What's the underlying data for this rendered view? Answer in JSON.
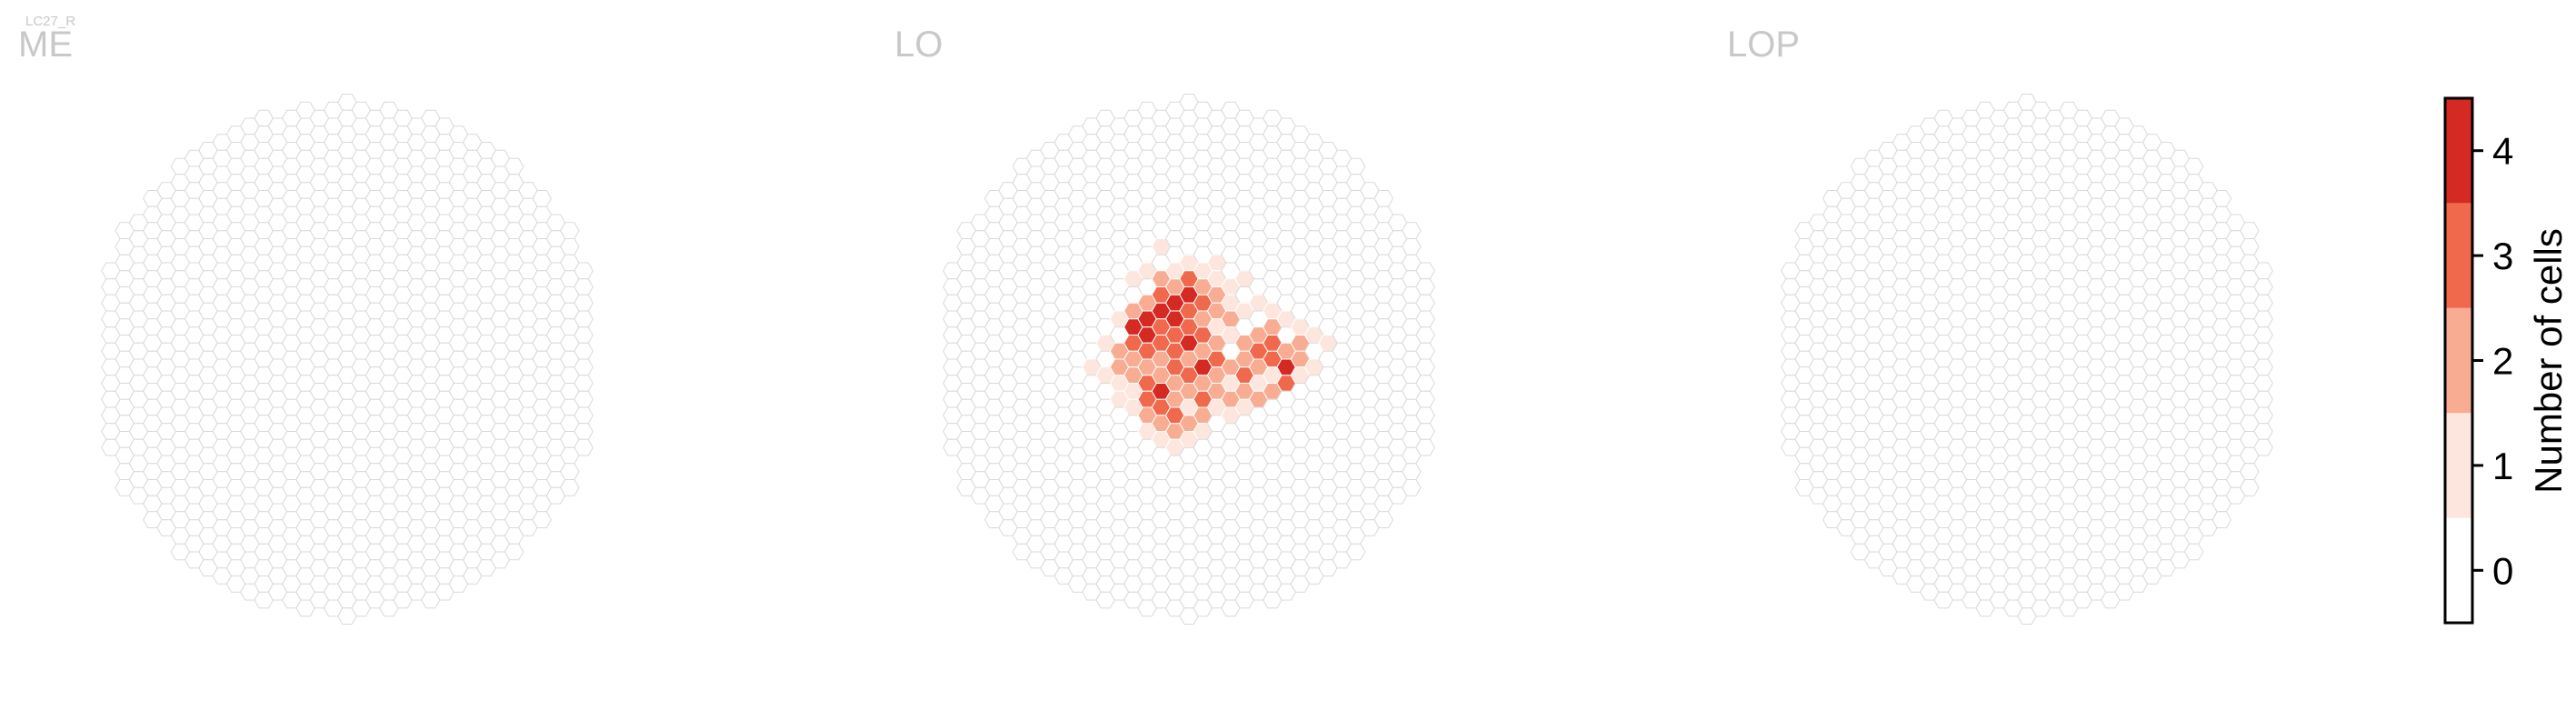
{
  "figure": {
    "suptitle": "LC27_R"
  },
  "chart_data": {
    "type": "heatmap",
    "description_free": true,
    "panels": [
      {
        "label": "ME",
        "cells_with_counts": []
      },
      {
        "label": "LO",
        "cells_with_counts": [
          {
            "q": -7,
            "r": 0,
            "value": 1
          },
          {
            "q": -6,
            "r": -1,
            "value": 1
          },
          {
            "q": -6,
            "r": 1,
            "value": 1
          },
          {
            "q": -5,
            "r": -3,
            "value": 1
          },
          {
            "q": -5,
            "r": -1,
            "value": 2
          },
          {
            "q": -5,
            "r": 0,
            "value": 2
          },
          {
            "q": -5,
            "r": 1,
            "value": 1
          },
          {
            "q": -5,
            "r": 2,
            "value": 1
          },
          {
            "q": -4,
            "r": -5,
            "value": 1
          },
          {
            "q": -4,
            "r": -3,
            "value": 2
          },
          {
            "q": -4,
            "r": -2,
            "value": 4
          },
          {
            "q": -4,
            "r": -1,
            "value": 3
          },
          {
            "q": -4,
            "r": 0,
            "value": 2
          },
          {
            "q": -4,
            "r": 1,
            "value": 2
          },
          {
            "q": -4,
            "r": 2,
            "value": 1
          },
          {
            "q": -4,
            "r": 3,
            "value": 1
          },
          {
            "q": -3,
            "r": -6,
            "value": 1
          },
          {
            "q": -3,
            "r": -4,
            "value": 2
          },
          {
            "q": -3,
            "r": -3,
            "value": 4
          },
          {
            "q": -3,
            "r": -2,
            "value": 4
          },
          {
            "q": -3,
            "r": -1,
            "value": 3
          },
          {
            "q": -3,
            "r": 0,
            "value": 2
          },
          {
            "q": -3,
            "r": 1,
            "value": 3
          },
          {
            "q": -3,
            "r": 2,
            "value": 3
          },
          {
            "q": -3,
            "r": 3,
            "value": 2
          },
          {
            "q": -3,
            "r": 4,
            "value": 1
          },
          {
            "q": -2,
            "r": -7,
            "value": 1
          },
          {
            "q": -2,
            "r": -5,
            "value": 2
          },
          {
            "q": -2,
            "r": -4,
            "value": 3
          },
          {
            "q": -2,
            "r": -3,
            "value": 4
          },
          {
            "q": -2,
            "r": -2,
            "value": 3
          },
          {
            "q": -2,
            "r": -1,
            "value": 3
          },
          {
            "q": -2,
            "r": 0,
            "value": 2
          },
          {
            "q": -2,
            "r": 1,
            "value": 2
          },
          {
            "q": -2,
            "r": 2,
            "value": 4
          },
          {
            "q": -2,
            "r": 3,
            "value": 3
          },
          {
            "q": -2,
            "r": 4,
            "value": 2
          },
          {
            "q": -2,
            "r": 5,
            "value": 1
          },
          {
            "q": -1,
            "r": -6,
            "value": 1
          },
          {
            "q": -1,
            "r": -5,
            "value": 2
          },
          {
            "q": -1,
            "r": -4,
            "value": 4
          },
          {
            "q": -1,
            "r": -3,
            "value": 4
          },
          {
            "q": -1,
            "r": -2,
            "value": 3
          },
          {
            "q": -1,
            "r": -1,
            "value": 3
          },
          {
            "q": -1,
            "r": 0,
            "value": 3
          },
          {
            "q": -1,
            "r": 1,
            "value": 2
          },
          {
            "q": -1,
            "r": 2,
            "value": 2
          },
          {
            "q": -1,
            "r": 3,
            "value": 3
          },
          {
            "q": -1,
            "r": 4,
            "value": 2
          },
          {
            "q": -1,
            "r": 5,
            "value": 1
          },
          {
            "q": 0,
            "r": -6,
            "value": 1
          },
          {
            "q": 0,
            "r": -5,
            "value": 3
          },
          {
            "q": 0,
            "r": -4,
            "value": 4
          },
          {
            "q": 0,
            "r": -3,
            "value": 3
          },
          {
            "q": 0,
            "r": -2,
            "value": 3
          },
          {
            "q": 0,
            "r": -1,
            "value": 4
          },
          {
            "q": 0,
            "r": 0,
            "value": 2
          },
          {
            "q": 0,
            "r": 1,
            "value": 3
          },
          {
            "q": 0,
            "r": 2,
            "value": 2
          },
          {
            "q": 0,
            "r": 3,
            "value": 1
          },
          {
            "q": 0,
            "r": 4,
            "value": 2
          },
          {
            "q": 0,
            "r": 5,
            "value": 1
          },
          {
            "q": 1,
            "r": -6,
            "value": 1
          },
          {
            "q": 1,
            "r": -5,
            "value": 2
          },
          {
            "q": 1,
            "r": -4,
            "value": 3
          },
          {
            "q": 1,
            "r": -3,
            "value": 2
          },
          {
            "q": 1,
            "r": -2,
            "value": 3
          },
          {
            "q": 1,
            "r": -1,
            "value": 2
          },
          {
            "q": 1,
            "r": 0,
            "value": 4
          },
          {
            "q": 1,
            "r": 1,
            "value": 2
          },
          {
            "q": 1,
            "r": 2,
            "value": 3
          },
          {
            "q": 1,
            "r": 3,
            "value": 2
          },
          {
            "q": 1,
            "r": 4,
            "value": 1
          },
          {
            "q": 2,
            "r": -6,
            "value": 1
          },
          {
            "q": 2,
            "r": -5,
            "value": 1
          },
          {
            "q": 2,
            "r": -4,
            "value": 2
          },
          {
            "q": 2,
            "r": -3,
            "value": 2
          },
          {
            "q": 2,
            "r": -2,
            "value": 1
          },
          {
            "q": 2,
            "r": -1,
            "value": 2
          },
          {
            "q": 2,
            "r": 0,
            "value": 3
          },
          {
            "q": 2,
            "r": 1,
            "value": 2
          },
          {
            "q": 2,
            "r": 2,
            "value": 2
          },
          {
            "q": 2,
            "r": 3,
            "value": 1
          },
          {
            "q": 3,
            "r": -5,
            "value": 1
          },
          {
            "q": 3,
            "r": -4,
            "value": 1
          },
          {
            "q": 3,
            "r": -3,
            "value": 2
          },
          {
            "q": 3,
            "r": -2,
            "value": 1
          },
          {
            "q": 3,
            "r": 0,
            "value": 2
          },
          {
            "q": 3,
            "r": 1,
            "value": 1
          },
          {
            "q": 3,
            "r": 2,
            "value": 2
          },
          {
            "q": 3,
            "r": 3,
            "value": 1
          },
          {
            "q": 4,
            "r": -5,
            "value": 1
          },
          {
            "q": 4,
            "r": -3,
            "value": 1
          },
          {
            "q": 4,
            "r": -1,
            "value": 2
          },
          {
            "q": 4,
            "r": 0,
            "value": 2
          },
          {
            "q": 4,
            "r": 1,
            "value": 3
          },
          {
            "q": 4,
            "r": 2,
            "value": 2
          },
          {
            "q": 4,
            "r": 3,
            "value": 1
          },
          {
            "q": 5,
            "r": -4,
            "value": 1
          },
          {
            "q": 5,
            "r": -2,
            "value": 2
          },
          {
            "q": 5,
            "r": -1,
            "value": 3
          },
          {
            "q": 5,
            "r": 0,
            "value": 2
          },
          {
            "q": 5,
            "r": 1,
            "value": 1
          },
          {
            "q": 5,
            "r": 2,
            "value": 2
          },
          {
            "q": 6,
            "r": -3,
            "value": 1
          },
          {
            "q": 6,
            "r": -2,
            "value": 2
          },
          {
            "q": 6,
            "r": -1,
            "value": 3
          },
          {
            "q": 6,
            "r": 0,
            "value": 3
          },
          {
            "q": 6,
            "r": 1,
            "value": 1
          },
          {
            "q": 6,
            "r": 2,
            "value": 2
          },
          {
            "q": 7,
            "r": -3,
            "value": 1
          },
          {
            "q": 7,
            "r": -1,
            "value": 2
          },
          {
            "q": 7,
            "r": 0,
            "value": 4
          },
          {
            "q": 7,
            "r": 1,
            "value": 3
          },
          {
            "q": 8,
            "r": -2,
            "value": 1
          },
          {
            "q": 8,
            "r": -1,
            "value": 2
          },
          {
            "q": 8,
            "r": 0,
            "value": 2
          },
          {
            "q": 8,
            "r": 1,
            "value": 1
          },
          {
            "q": 9,
            "r": -2,
            "value": 1
          },
          {
            "q": 9,
            "r": 0,
            "value": 1
          },
          {
            "q": 10,
            "r": -1,
            "value": 1
          }
        ]
      },
      {
        "label": "LOP",
        "cells_with_counts": []
      }
    ],
    "colorbar": {
      "label": "Number of cells",
      "ticks": [
        0,
        1,
        2,
        3,
        4
      ],
      "range": [
        -0.5,
        4.5
      ]
    },
    "colors": {
      "bins": [
        "#ffffff",
        "#fde6dd",
        "#f8ad93",
        "#f0694c",
        "#d42a22"
      ],
      "empty_cell_fill": "#ffffff",
      "cell_outline": "#d9d9d9",
      "boundary_cell_fill": "#c8c8c8",
      "panel_label": "#c8c8c8"
    }
  }
}
